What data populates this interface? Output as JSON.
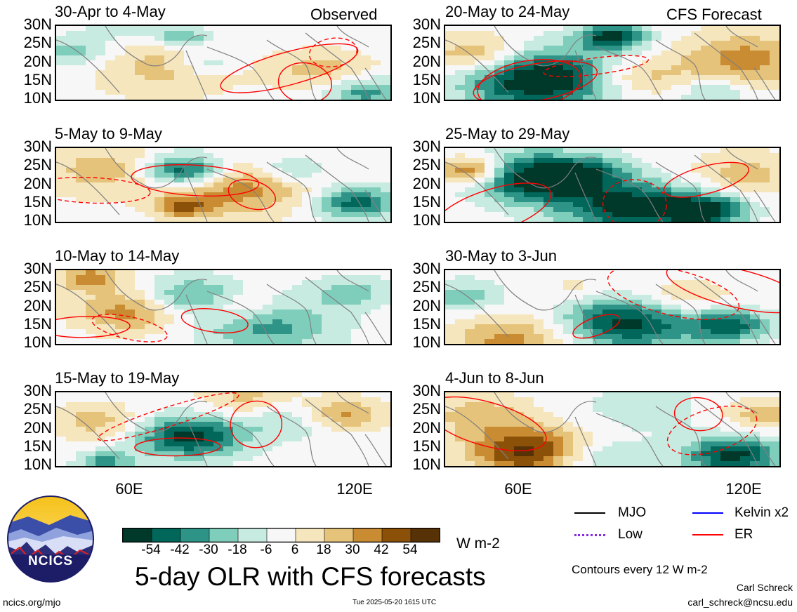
{
  "figure": {
    "title": "5-day OLR with CFS forecasts",
    "observed_label": "Observed",
    "forecast_label": "CFS Forecast",
    "units": "W m-2",
    "contour_note": "Contours every 12 W m-2",
    "author": "Carl Schreck",
    "email": "carl_schreck@ncsu.edu",
    "url": "ncics.org/mjo",
    "timestamp": "Tue 2025-05-20 1615 UTC",
    "logo_text": "NCICS"
  },
  "axes": {
    "lat_labels": [
      "30N",
      "25N",
      "20N",
      "15N",
      "10N"
    ],
    "lon_labels": [
      "60E",
      "120E"
    ]
  },
  "colorbar": {
    "labels": [
      "-54",
      "-42",
      "-30",
      "-18",
      "-6",
      "6",
      "18",
      "30",
      "42",
      "54"
    ],
    "colors": [
      "#00382a",
      "#00675a",
      "#2f9488",
      "#7fcdbb",
      "#c8ebe1",
      "#f7f7f7",
      "#f6e6bd",
      "#e6c37a",
      "#c98c33",
      "#8c5109",
      "#583207"
    ]
  },
  "legend": [
    {
      "label": "MJO",
      "color": "#000000",
      "style": "solid"
    },
    {
      "label": "Kelvin x2",
      "color": "#0000ff",
      "style": "solid"
    },
    {
      "label": "Low",
      "color": "#8a2be2",
      "style": "dotted"
    },
    {
      "label": "ER",
      "color": "#ff0000",
      "style": "solid"
    }
  ],
  "chart_data": [
    {
      "type": "heatmap",
      "title": "30-Apr to 4-May",
      "source": "Observed",
      "lon_range": [
        40,
        130
      ],
      "lat_range": [
        10,
        30
      ]
    },
    {
      "type": "heatmap",
      "title": "5-May to 9-May",
      "source": "Observed",
      "lon_range": [
        40,
        130
      ],
      "lat_range": [
        10,
        30
      ]
    },
    {
      "type": "heatmap",
      "title": "10-May to 14-May",
      "source": "Observed",
      "lon_range": [
        40,
        130
      ],
      "lat_range": [
        10,
        30
      ]
    },
    {
      "type": "heatmap",
      "title": "15-May to 19-May",
      "source": "Observed",
      "lon_range": [
        40,
        130
      ],
      "lat_range": [
        10,
        30
      ]
    },
    {
      "type": "heatmap",
      "title": "20-May to 24-May",
      "source": "CFS Forecast",
      "lon_range": [
        40,
        130
      ],
      "lat_range": [
        10,
        30
      ]
    },
    {
      "type": "heatmap",
      "title": "25-May to 29-May",
      "source": "CFS Forecast",
      "lon_range": [
        40,
        130
      ],
      "lat_range": [
        10,
        30
      ]
    },
    {
      "type": "heatmap",
      "title": "30-May to 3-Jun",
      "source": "CFS Forecast",
      "lon_range": [
        40,
        130
      ],
      "lat_range": [
        10,
        30
      ]
    },
    {
      "type": "heatmap",
      "title": "4-Jun to 8-Jun",
      "source": "CFS Forecast",
      "lon_range": [
        40,
        130
      ],
      "lat_range": [
        10,
        30
      ]
    }
  ]
}
